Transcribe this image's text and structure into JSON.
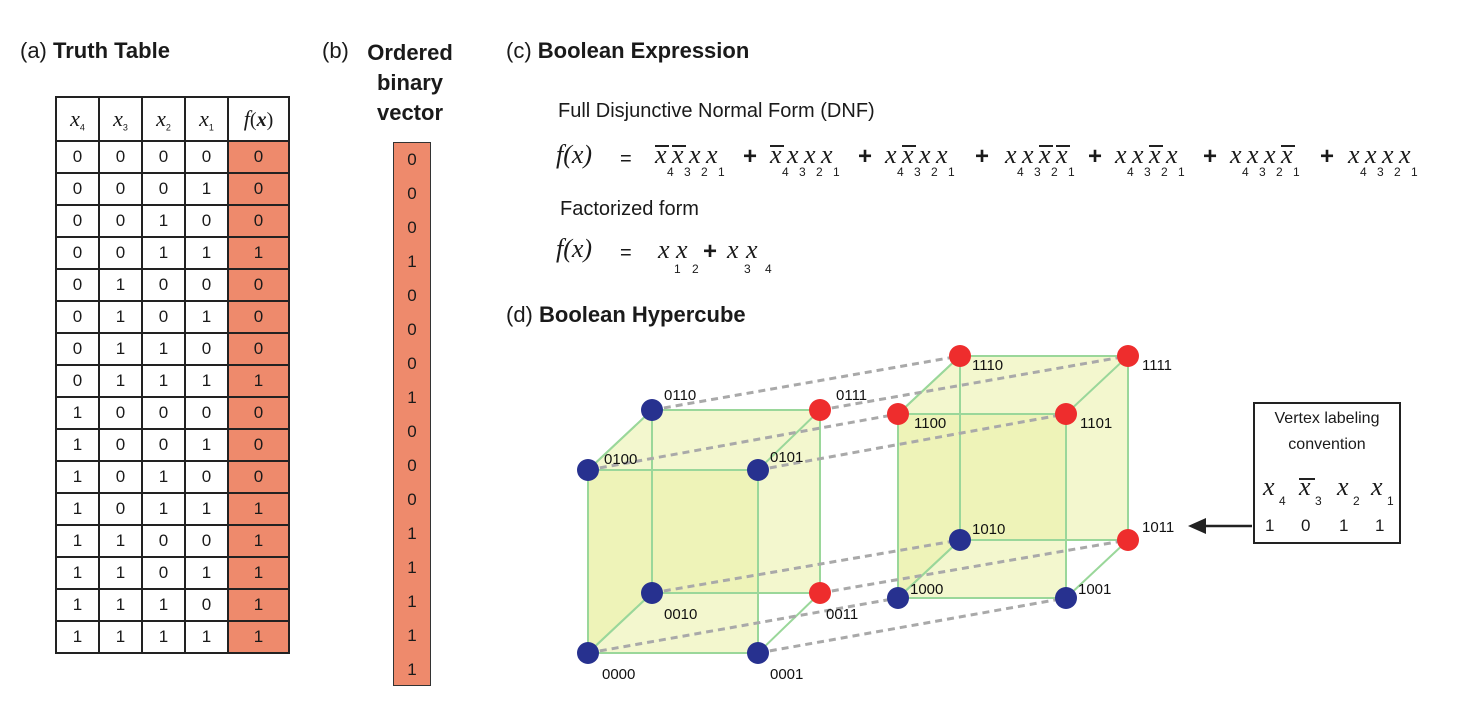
{
  "panels": {
    "a": {
      "tag": "(a)",
      "title": "Truth Table"
    },
    "b": {
      "tag": "(b)",
      "title_lines": [
        "Ordered",
        "binary",
        "vector"
      ]
    },
    "c": {
      "tag": "(c)",
      "title": "Boolean Expression"
    },
    "d": {
      "tag": "(d)",
      "title": "Boolean Hypercube"
    }
  },
  "truth_table": {
    "headers": [
      "x4",
      "x3",
      "x2",
      "x1",
      "f(x)"
    ],
    "rows": [
      [
        "0",
        "0",
        "0",
        "0",
        "0"
      ],
      [
        "0",
        "0",
        "0",
        "1",
        "0"
      ],
      [
        "0",
        "0",
        "1",
        "0",
        "0"
      ],
      [
        "0",
        "0",
        "1",
        "1",
        "1"
      ],
      [
        "0",
        "1",
        "0",
        "0",
        "0"
      ],
      [
        "0",
        "1",
        "0",
        "1",
        "0"
      ],
      [
        "0",
        "1",
        "1",
        "0",
        "0"
      ],
      [
        "0",
        "1",
        "1",
        "1",
        "1"
      ],
      [
        "1",
        "0",
        "0",
        "0",
        "0"
      ],
      [
        "1",
        "0",
        "0",
        "1",
        "0"
      ],
      [
        "1",
        "0",
        "1",
        "0",
        "0"
      ],
      [
        "1",
        "0",
        "1",
        "1",
        "1"
      ],
      [
        "1",
        "1",
        "0",
        "0",
        "1"
      ],
      [
        "1",
        "1",
        "0",
        "1",
        "1"
      ],
      [
        "1",
        "1",
        "1",
        "0",
        "1"
      ],
      [
        "1",
        "1",
        "1",
        "1",
        "1"
      ]
    ]
  },
  "binary_vector": [
    "0",
    "0",
    "0",
    "1",
    "0",
    "0",
    "0",
    "1",
    "0",
    "0",
    "0",
    "1",
    "1",
    "1",
    "1",
    "1"
  ],
  "expression": {
    "dnf_label": "Full Disjunctive Normal Form (DNF)",
    "factorized_label": "Factorized form",
    "fx": "f(x)",
    "equals": "=",
    "plus": "+"
  },
  "hypercube": {
    "vertices": [
      {
        "label": "0000",
        "active": false
      },
      {
        "label": "0001",
        "active": false
      },
      {
        "label": "0010",
        "active": false
      },
      {
        "label": "0011",
        "active": true
      },
      {
        "label": "0100",
        "active": false
      },
      {
        "label": "0101",
        "active": false
      },
      {
        "label": "0110",
        "active": false
      },
      {
        "label": "0111",
        "active": true
      },
      {
        "label": "1000",
        "active": false
      },
      {
        "label": "1001",
        "active": false
      },
      {
        "label": "1010",
        "active": false
      },
      {
        "label": "1011",
        "active": true
      },
      {
        "label": "1100",
        "active": true
      },
      {
        "label": "1101",
        "active": true
      },
      {
        "label": "1110",
        "active": true
      },
      {
        "label": "1111",
        "active": true
      }
    ],
    "colors": {
      "active": "#ee2d2d",
      "inactive": "#27318f",
      "face": "#e9f1a6",
      "edge": "#9ad79a",
      "dashed": "#a9a9a9"
    }
  },
  "legend": {
    "title_lines": [
      "Vertex labeling",
      "convention"
    ],
    "values": [
      "1",
      "0",
      "1",
      "1"
    ]
  }
}
